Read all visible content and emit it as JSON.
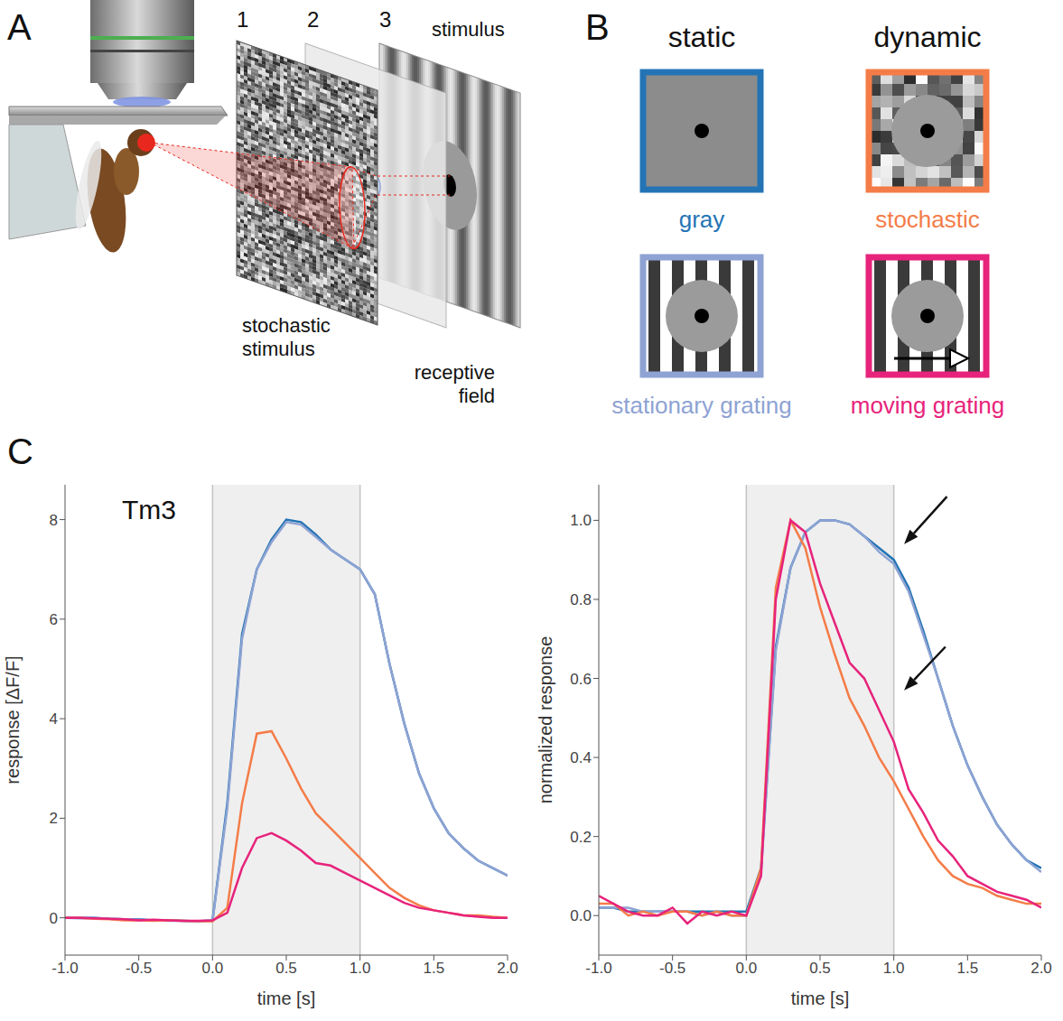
{
  "panels": {
    "A": {
      "letter": "A",
      "layers": [
        {
          "number": "1",
          "label": "stochastic stimulus"
        },
        {
          "number": "2",
          "label": "receptive field"
        },
        {
          "number": "3",
          "label": "stimulus"
        }
      ]
    },
    "B": {
      "letter": "B",
      "columns": [
        "static",
        "dynamic"
      ],
      "stimuli": [
        {
          "label": "gray",
          "color": "#2474b5",
          "column": "static"
        },
        {
          "label": "stationary grating",
          "color": "#8ea3d3",
          "column": "static"
        },
        {
          "label": "stochastic",
          "color": "#f47c48",
          "column": "dynamic"
        },
        {
          "label": "moving grating",
          "color": "#e7237b",
          "column": "dynamic"
        }
      ]
    },
    "C": {
      "letter": "C"
    }
  },
  "chart_data": [
    {
      "type": "line",
      "title": "Tm3",
      "x_label": "time [s]",
      "y_label": "response [ΔF/F]",
      "x": [
        -1.0,
        -0.9,
        -0.8,
        -0.7,
        -0.6,
        -0.5,
        -0.4,
        -0.3,
        -0.2,
        -0.1,
        0.0,
        0.1,
        0.2,
        0.3,
        0.4,
        0.5,
        0.6,
        0.7,
        0.8,
        0.9,
        1.0,
        1.1,
        1.2,
        1.3,
        1.4,
        1.5,
        1.6,
        1.7,
        1.8,
        1.9,
        2.0
      ],
      "series": [
        {
          "name": "gray",
          "color": "#2474b5",
          "values": [
            0.0,
            0.0,
            0.0,
            -0.02,
            -0.03,
            -0.03,
            -0.05,
            -0.05,
            -0.06,
            -0.07,
            -0.05,
            2.3,
            5.7,
            7.0,
            7.6,
            8.0,
            7.95,
            7.7,
            7.4,
            7.2,
            7.0,
            6.5,
            5.1,
            3.9,
            2.9,
            2.2,
            1.7,
            1.4,
            1.15,
            1.0,
            0.85
          ]
        },
        {
          "name": "stationary grating",
          "color": "#8ea3d3",
          "values": [
            0.0,
            -0.01,
            0.0,
            -0.02,
            -0.03,
            -0.04,
            -0.05,
            -0.06,
            -0.06,
            -0.08,
            -0.06,
            2.2,
            5.6,
            7.0,
            7.55,
            7.95,
            7.9,
            7.65,
            7.4,
            7.2,
            7.0,
            6.5,
            5.1,
            3.9,
            2.9,
            2.2,
            1.7,
            1.4,
            1.15,
            1.0,
            0.85
          ]
        },
        {
          "name": "stochastic",
          "color": "#f47c48",
          "values": [
            0.0,
            0.0,
            -0.02,
            -0.03,
            -0.05,
            -0.05,
            -0.06,
            -0.05,
            -0.06,
            -0.07,
            -0.07,
            0.2,
            2.3,
            3.7,
            3.75,
            3.2,
            2.6,
            2.1,
            1.8,
            1.5,
            1.2,
            0.9,
            0.6,
            0.4,
            0.25,
            0.15,
            0.1,
            0.05,
            0.05,
            0.02,
            0.0
          ]
        },
        {
          "name": "moving grating",
          "color": "#e7237b",
          "values": [
            0.0,
            0.0,
            -0.01,
            -0.02,
            -0.03,
            -0.05,
            -0.04,
            -0.05,
            -0.06,
            -0.06,
            -0.05,
            0.1,
            1.0,
            1.6,
            1.7,
            1.55,
            1.35,
            1.1,
            1.05,
            0.9,
            0.75,
            0.6,
            0.45,
            0.3,
            0.2,
            0.15,
            0.1,
            0.05,
            0.02,
            0.0,
            0.0
          ]
        }
      ],
      "xlim": [
        -1,
        2
      ],
      "xticks": [
        {
          "value": -1,
          "label": "-1.0"
        },
        {
          "value": -0.5,
          "label": "-0.5"
        },
        {
          "value": 0,
          "label": "0.0"
        },
        {
          "value": 0.5,
          "label": "0.5"
        },
        {
          "value": 1,
          "label": "1.0"
        },
        {
          "value": 1.5,
          "label": "1.5"
        },
        {
          "value": 2,
          "label": "2.0"
        }
      ],
      "ylim": [
        -0.75,
        8.7
      ],
      "yticks": [
        0,
        2,
        4,
        6,
        8
      ],
      "stimulus_interval": [
        0,
        1
      ]
    },
    {
      "type": "line",
      "x_label": "time [s]",
      "y_label": "normalized response",
      "x": [
        -1.0,
        -0.9,
        -0.8,
        -0.7,
        -0.6,
        -0.5,
        -0.4,
        -0.3,
        -0.2,
        -0.1,
        0.0,
        0.1,
        0.2,
        0.3,
        0.4,
        0.5,
        0.6,
        0.7,
        0.8,
        0.9,
        1.0,
        1.1,
        1.2,
        1.3,
        1.4,
        1.5,
        1.6,
        1.7,
        1.8,
        1.9,
        2.0
      ],
      "series": [
        {
          "name": "gray",
          "color": "#2474b5",
          "values": [
            0.02,
            0.02,
            0.01,
            0.01,
            0.01,
            0.01,
            0.01,
            0.01,
            0.01,
            0.01,
            0.01,
            0.12,
            0.68,
            0.88,
            0.97,
            1.0,
            1.0,
            0.99,
            0.96,
            0.93,
            0.9,
            0.83,
            0.72,
            0.6,
            0.48,
            0.38,
            0.3,
            0.23,
            0.18,
            0.14,
            0.12
          ]
        },
        {
          "name": "stationary grating",
          "color": "#8ea3d3",
          "values": [
            0.02,
            0.02,
            0.02,
            0.01,
            0.01,
            0.01,
            0.01,
            0.0,
            0.01,
            0.0,
            0.0,
            0.11,
            0.67,
            0.88,
            0.97,
            1.0,
            1.0,
            0.99,
            0.96,
            0.92,
            0.89,
            0.82,
            0.71,
            0.6,
            0.48,
            0.38,
            0.3,
            0.23,
            0.18,
            0.14,
            0.11
          ]
        },
        {
          "name": "stochastic",
          "color": "#f47c48",
          "values": [
            0.03,
            0.03,
            0.0,
            0.01,
            0.0,
            0.01,
            0.01,
            0.0,
            0.01,
            0.0,
            0.0,
            0.12,
            0.83,
            1.0,
            0.93,
            0.78,
            0.66,
            0.55,
            0.48,
            0.4,
            0.34,
            0.27,
            0.2,
            0.14,
            0.1,
            0.08,
            0.07,
            0.05,
            0.04,
            0.03,
            0.03
          ]
        },
        {
          "name": "moving grating",
          "color": "#e7237b",
          "values": [
            0.05,
            0.03,
            0.01,
            0.0,
            0.0,
            0.02,
            -0.02,
            0.01,
            0.0,
            0.01,
            0.0,
            0.1,
            0.8,
            1.0,
            0.97,
            0.84,
            0.74,
            0.64,
            0.6,
            0.52,
            0.44,
            0.32,
            0.26,
            0.19,
            0.15,
            0.1,
            0.08,
            0.06,
            0.05,
            0.04,
            0.02
          ]
        }
      ],
      "xlim": [
        -1,
        2
      ],
      "xticks": [
        {
          "value": -1,
          "label": "-1.0"
        },
        {
          "value": -0.5,
          "label": "-0.5"
        },
        {
          "value": 0,
          "label": "0.0"
        },
        {
          "value": 0.5,
          "label": "0.5"
        },
        {
          "value": 1,
          "label": "1.0"
        },
        {
          "value": 1.5,
          "label": "1.5"
        },
        {
          "value": 2,
          "label": "2.0"
        }
      ],
      "ylim": [
        -0.1,
        1.09
      ],
      "yticks": [
        {
          "value": 0,
          "label": "0.0"
        },
        {
          "value": 0.2,
          "label": "0.2"
        },
        {
          "value": 0.4,
          "label": "0.4"
        },
        {
          "value": 0.6,
          "label": "0.6"
        },
        {
          "value": 0.8,
          "label": "0.8"
        },
        {
          "value": 1,
          "label": "1.0"
        }
      ],
      "stimulus_interval": [
        0,
        1
      ],
      "arrows": [
        {
          "from": [
            1.36,
            1.06
          ],
          "to": [
            1.07,
            0.94
          ]
        },
        {
          "from": [
            1.35,
            0.68
          ],
          "to": [
            1.07,
            0.57
          ]
        }
      ]
    }
  ]
}
